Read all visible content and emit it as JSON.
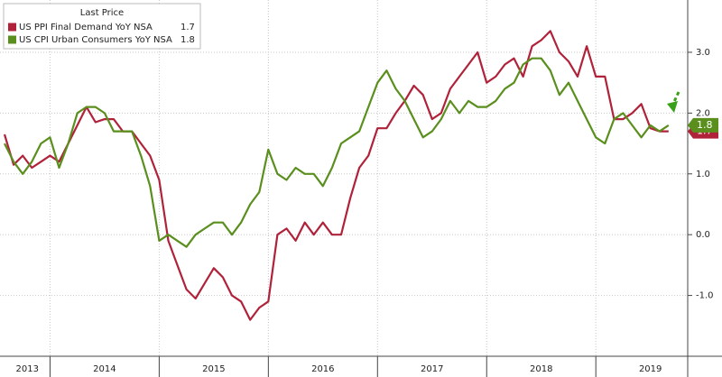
{
  "chart_data": {
    "type": "line",
    "legend_title": "Last Price",
    "categories": [
      null,
      null,
      null,
      null,
      null,
      null,
      null,
      null,
      null,
      null,
      null,
      null,
      null,
      null,
      null,
      null,
      null,
      null,
      null,
      null,
      null,
      null,
      null,
      null,
      null,
      null,
      null,
      null,
      null,
      null,
      null,
      null,
      null,
      null,
      null,
      null,
      null,
      null,
      null,
      null,
      null,
      null,
      null,
      null,
      null,
      null,
      null,
      null,
      null,
      null,
      null,
      null,
      null,
      null,
      null,
      null,
      null,
      null,
      null,
      null,
      null,
      null,
      null,
      null,
      null,
      null,
      null,
      null,
      null,
      null,
      null,
      null,
      null,
      null
    ],
    "xlim": [
      -0.5,
      75.1
    ],
    "xticks": [
      {
        "value": 2.5,
        "label": "2013"
      },
      {
        "value": 11,
        "label": "2014"
      },
      {
        "value": 23,
        "label": "2015"
      },
      {
        "value": 35,
        "label": "2016"
      },
      {
        "value": 47,
        "label": "2017"
      },
      {
        "value": 59,
        "label": "2018"
      },
      {
        "value": 71,
        "label": "2019"
      }
    ],
    "ylim": [
      -2.0,
      3.86
    ],
    "yticks": [
      {
        "value": -1,
        "label": "-1.0"
      },
      {
        "value": 0,
        "label": "0.0"
      },
      {
        "value": 1,
        "label": "1.0"
      },
      {
        "value": 2,
        "label": "2.0"
      },
      {
        "value": 3,
        "label": "3.0"
      }
    ],
    "grid": true,
    "series": [
      {
        "name": "US PPI Final Demand YoY NSA",
        "color": "#b0223a",
        "last_value": 1.7,
        "values": [
          1.65,
          1.15,
          1.3,
          1.1,
          1.2,
          1.3,
          1.2,
          1.5,
          1.8,
          2.1,
          1.85,
          1.9,
          1.9,
          1.7,
          1.7,
          1.5,
          1.3,
          0.9,
          -0.1,
          -0.5,
          -0.9,
          -1.05,
          -0.8,
          -0.55,
          -0.7,
          -1.0,
          -1.1,
          -1.4,
          -1.2,
          -1.1,
          0.0,
          0.1,
          -0.1,
          0.2,
          0.0,
          0.2,
          0.0,
          0.0,
          0.6,
          1.1,
          1.3,
          1.75,
          1.75,
          2.0,
          2.2,
          2.45,
          2.3,
          1.9,
          2.0,
          2.4,
          2.6,
          2.8,
          3.0,
          2.5,
          2.6,
          2.8,
          2.9,
          2.6,
          3.1,
          3.2,
          3.35,
          3.0,
          2.85,
          2.6,
          3.1,
          2.6,
          2.6,
          1.9,
          1.9,
          2.0,
          2.15,
          1.75,
          1.7,
          1.7
        ]
      },
      {
        "name": "US CPI Urban Consumers YoY NSA",
        "color": "#5a8f1e",
        "last_value": 1.8,
        "values": [
          1.5,
          1.2,
          1.0,
          1.2,
          1.5,
          1.6,
          1.1,
          1.5,
          2.0,
          2.1,
          2.1,
          2.0,
          1.7,
          1.7,
          1.7,
          1.3,
          0.8,
          -0.1,
          0.0,
          -0.1,
          -0.2,
          0.0,
          0.1,
          0.2,
          0.2,
          0.0,
          0.2,
          0.5,
          0.7,
          1.4,
          1.0,
          0.9,
          1.1,
          1.0,
          1.0,
          0.8,
          1.1,
          1.5,
          1.6,
          1.7,
          2.1,
          2.5,
          2.7,
          2.4,
          2.2,
          1.9,
          1.6,
          1.7,
          1.9,
          2.2,
          2.0,
          2.2,
          2.1,
          2.1,
          2.2,
          2.4,
          2.5,
          2.8,
          2.9,
          2.9,
          2.7,
          2.3,
          2.5,
          2.2,
          1.9,
          1.6,
          1.5,
          1.9,
          2.0,
          1.8,
          1.6,
          1.8,
          1.7,
          1.8
        ]
      }
    ]
  }
}
